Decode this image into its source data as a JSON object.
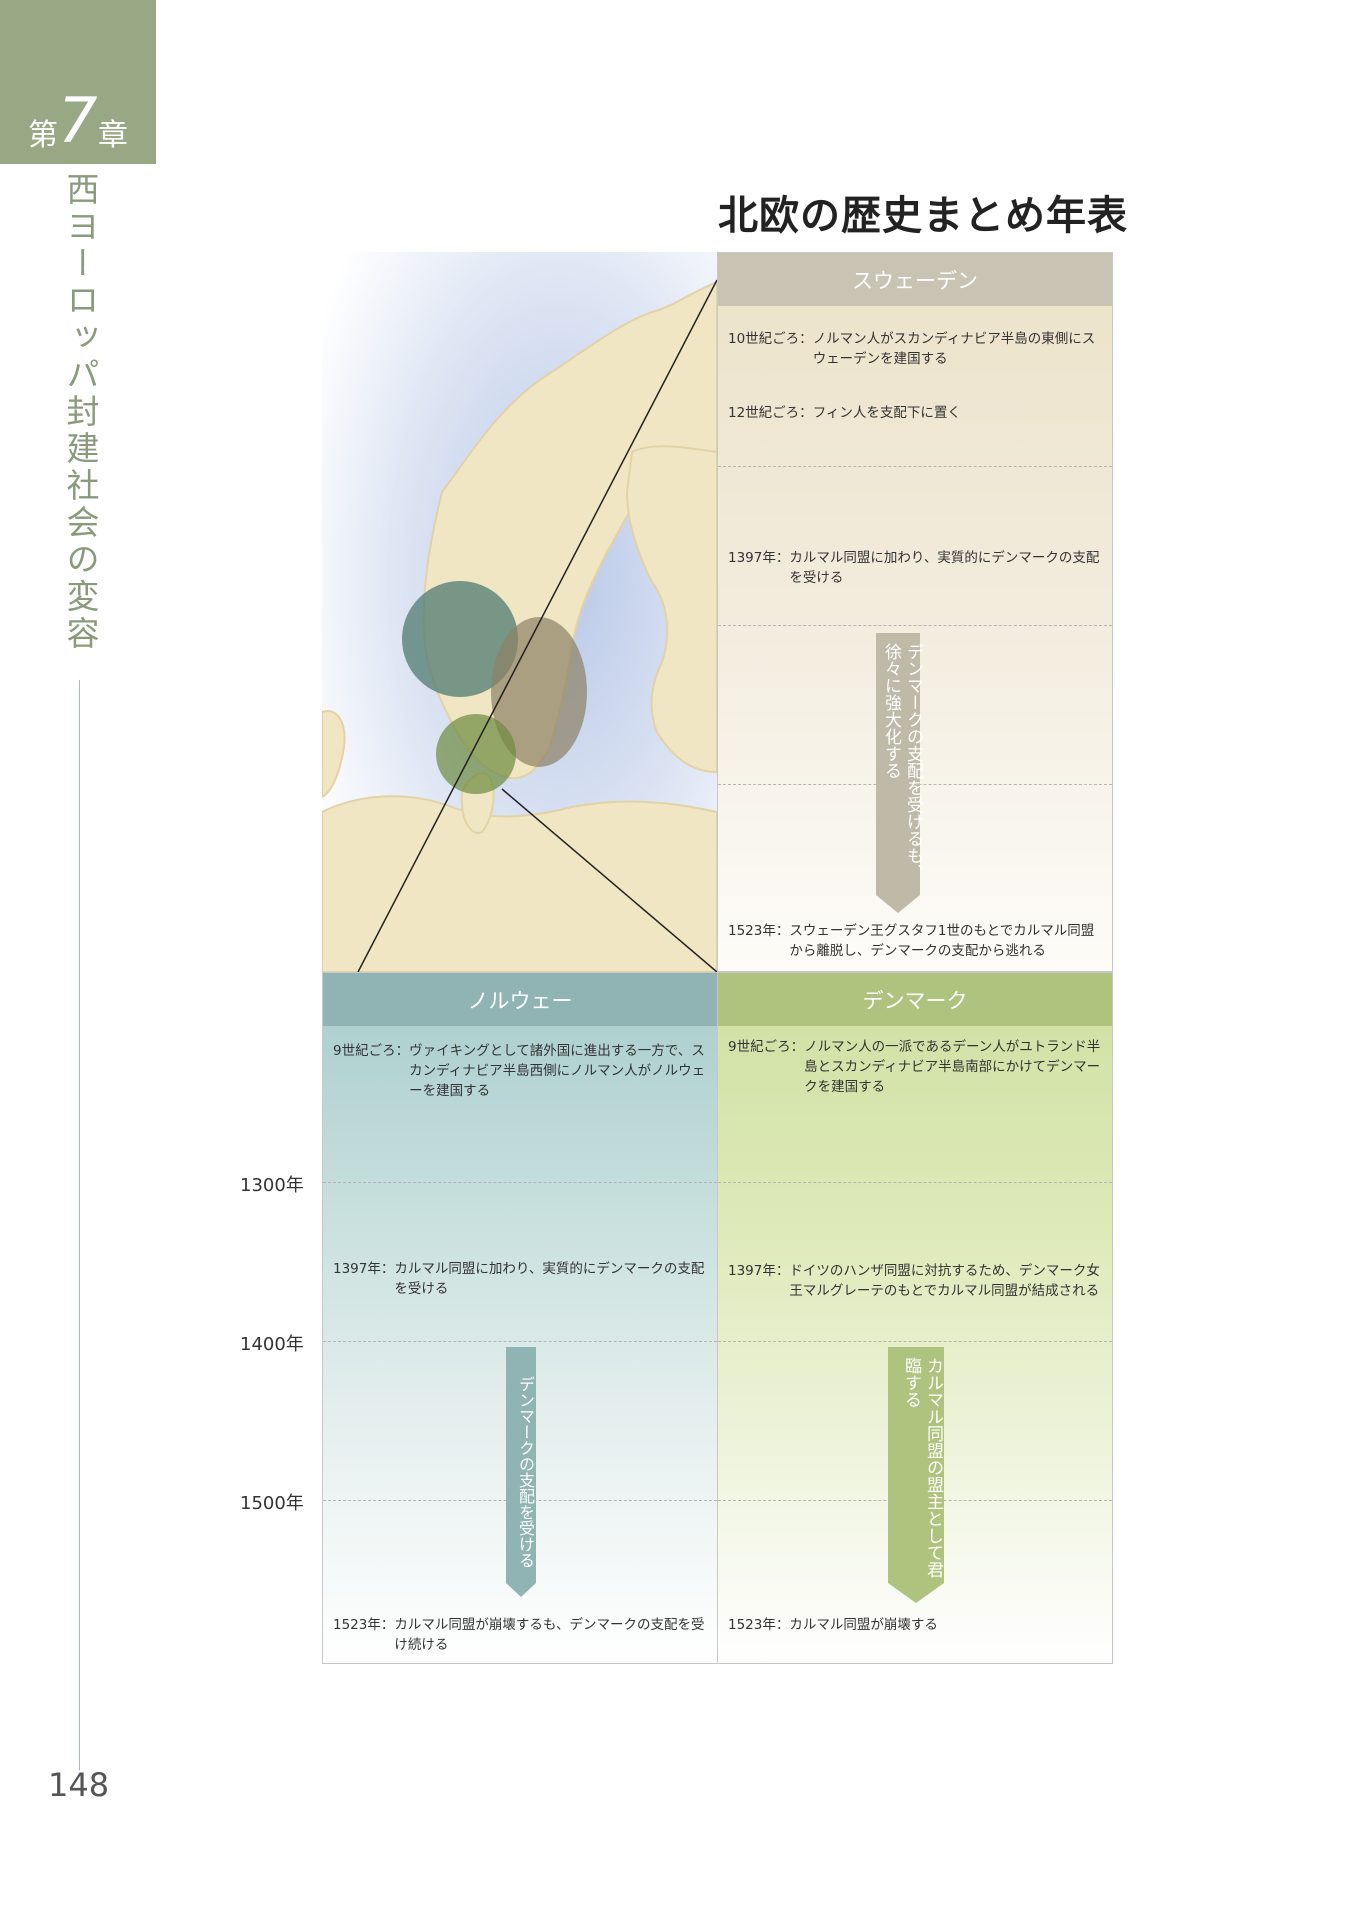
{
  "chapter": {
    "prefix": "第",
    "number": "7",
    "suffix": "章",
    "title": "西ヨーロッパ封建社会の変容"
  },
  "page_number": "148",
  "title": "北欧の歴史まとめ年表",
  "year_markers": [
    "1300年",
    "1400年",
    "1500年"
  ],
  "sweden": {
    "header": "スウェーデン",
    "events": [
      {
        "year": "10世紀ごろ：",
        "text": "ノルマン人がスカンディナビア半島の東側にスウェーデンを建国する"
      },
      {
        "year": "12世紀ごろ：",
        "text": "フィン人を支配下に置く"
      },
      {
        "year": "1397年：",
        "text": "カルマル同盟に加わり、実質的にデンマークの支配を受ける"
      },
      {
        "year": "1523年：",
        "text": "スウェーデン王グスタフ1世のもとでカルマル同盟から離脱し、デンマークの支配から逃れる"
      }
    ],
    "arrow_text": "デンマークの支配を受けるも、徐々に強大化する"
  },
  "norway": {
    "header": "ノルウェー",
    "events": [
      {
        "year": "9世紀ごろ：",
        "text": "ヴァイキングとして諸外国に進出する一方で、スカンディナビア半島西側にノルマン人がノルウェーを建国する"
      },
      {
        "year": "1397年：",
        "text": "カルマル同盟に加わり、実質的にデンマークの支配を受ける"
      },
      {
        "year": "1523年：",
        "text": "カルマル同盟が崩壊するも、デンマークの支配を受け続ける"
      }
    ],
    "arrow_text": "デンマークの支配を受ける"
  },
  "denmark": {
    "header": "デンマーク",
    "events": [
      {
        "year": "9世紀ごろ：",
        "text": "ノルマン人の一派であるデーン人がユトランド半島とスカンディナビア半島南部にかけてデンマークを建国する"
      },
      {
        "year": "1397年：",
        "text": "ドイツのハンザ同盟に対抗するため、デンマーク女王マルグレーテのもとでカルマル同盟が結成される"
      },
      {
        "year": "1523年：",
        "text": "カルマル同盟が崩壊する"
      }
    ],
    "arrow_text": "カルマル同盟の盟主として君臨する"
  },
  "colors": {
    "chapter_tab": "#98a884",
    "sweden": "#c8c3b3",
    "norway": "#8fb4b3",
    "denmark": "#aec47e"
  }
}
